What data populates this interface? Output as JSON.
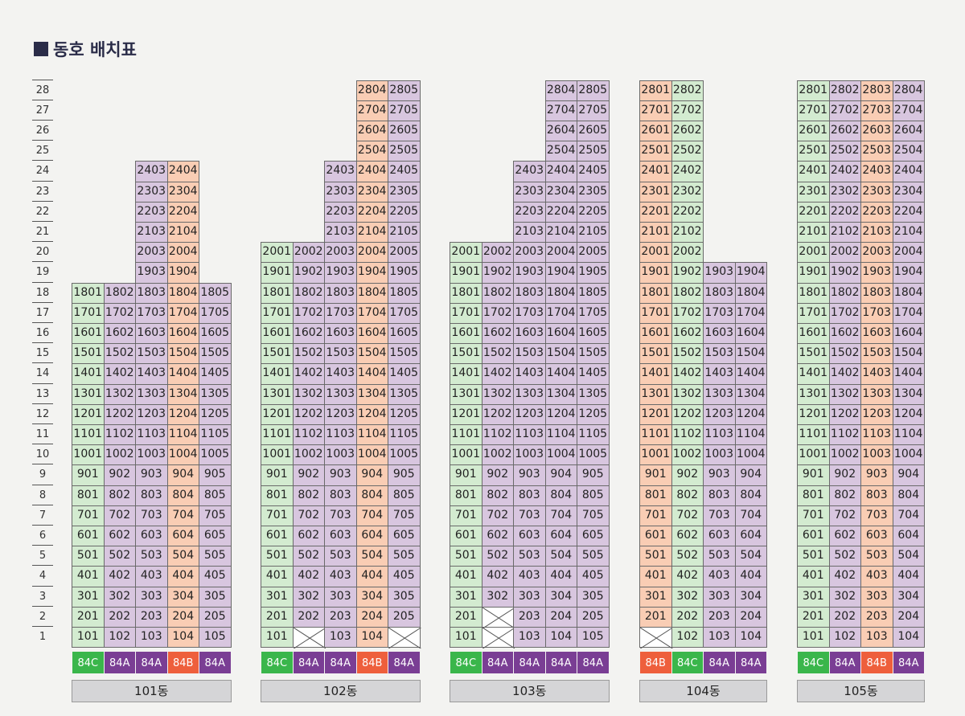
{
  "title": "동호 배치표",
  "floors": [
    "1",
    "2",
    "3",
    "4",
    "5",
    "6",
    "7",
    "8",
    "9",
    "10",
    "11",
    "12",
    "13",
    "14",
    "15",
    "16",
    "17",
    "18",
    "19",
    "20",
    "21",
    "22",
    "23",
    "24",
    "25",
    "26",
    "27",
    "28"
  ],
  "colors": {
    "84A": "#7a3e94",
    "84B": "#ee5f3c",
    "84C": "#3ab64b"
  },
  "buildings": [
    {
      "name": "101동",
      "lines": [
        {
          "type": "84C",
          "unitColor": "C",
          "no": "01",
          "floors": [
            1,
            18
          ],
          "blank": []
        },
        {
          "type": "84A",
          "unitColor": "A",
          "no": "02",
          "floors": [
            1,
            18
          ],
          "blank": []
        },
        {
          "type": "84A",
          "unitColor": "A",
          "no": "03",
          "floors": [
            1,
            24
          ],
          "blank": []
        },
        {
          "type": "84B",
          "unitColor": "B",
          "no": "04",
          "floors": [
            1,
            24
          ],
          "blank": []
        },
        {
          "type": "84A",
          "unitColor": "A",
          "no": "05",
          "floors": [
            1,
            18
          ],
          "blank": []
        }
      ]
    },
    {
      "name": "102동",
      "lines": [
        {
          "type": "84C",
          "unitColor": "C",
          "no": "01",
          "floors": [
            1,
            20
          ],
          "blank": []
        },
        {
          "type": "84A",
          "unitColor": "A",
          "no": "02",
          "floors": [
            1,
            20
          ],
          "blank": [
            1
          ]
        },
        {
          "type": "84A",
          "unitColor": "A",
          "no": "03",
          "floors": [
            1,
            24
          ],
          "blank": []
        },
        {
          "type": "84B",
          "unitColor": "B",
          "no": "04",
          "floors": [
            1,
            28
          ],
          "blank": []
        },
        {
          "type": "84A",
          "unitColor": "A",
          "no": "05",
          "floors": [
            1,
            28
          ],
          "blank": [
            1
          ]
        }
      ]
    },
    {
      "name": "103동",
      "lines": [
        {
          "type": "84C",
          "unitColor": "C",
          "no": "01",
          "floors": [
            1,
            20
          ],
          "blank": []
        },
        {
          "type": "84A",
          "unitColor": "A",
          "no": "02",
          "floors": [
            1,
            20
          ],
          "blank": [
            1,
            2
          ]
        },
        {
          "type": "84A",
          "unitColor": "A",
          "no": "03",
          "floors": [
            1,
            24
          ],
          "blank": []
        },
        {
          "type": "84A",
          "unitColor": "A",
          "no": "04",
          "floors": [
            1,
            28
          ],
          "blank": []
        },
        {
          "type": "84A",
          "unitColor": "A",
          "no": "05",
          "floors": [
            1,
            28
          ],
          "blank": []
        }
      ]
    },
    {
      "name": "104동",
      "lines": [
        {
          "type": "84B",
          "unitColor": "B",
          "no": "01",
          "floors": [
            1,
            28
          ],
          "blank": [
            1
          ]
        },
        {
          "type": "84C",
          "unitColor": "C",
          "no": "02",
          "floors": [
            1,
            28
          ],
          "blank": []
        },
        {
          "type": "84A",
          "unitColor": "A",
          "no": "03",
          "floors": [
            1,
            19
          ],
          "blank": []
        },
        {
          "type": "84A",
          "unitColor": "A",
          "no": "04",
          "floors": [
            1,
            19
          ],
          "blank": []
        }
      ]
    },
    {
      "name": "105동",
      "lines": [
        {
          "type": "84C",
          "unitColor": "C",
          "no": "01",
          "floors": [
            1,
            28
          ],
          "blank": []
        },
        {
          "type": "84A",
          "unitColor": "A",
          "no": "02",
          "floors": [
            1,
            28
          ],
          "blank": []
        },
        {
          "type": "84B",
          "unitColor": "B",
          "no": "03",
          "floors": [
            1,
            28
          ],
          "blank": []
        },
        {
          "type": "84A",
          "unitColor": "A",
          "no": "04",
          "floors": [
            1,
            28
          ],
          "blank": []
        }
      ]
    }
  ]
}
